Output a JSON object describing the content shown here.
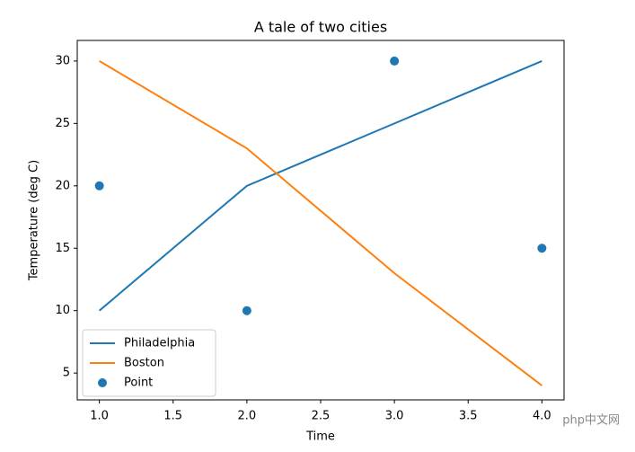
{
  "chart_data": {
    "type": "line",
    "title": "A tale of two cities",
    "x_label": "Time",
    "y_label": "Temperature (deg C)",
    "x": [
      1,
      2,
      3,
      4
    ],
    "series": [
      {
        "name": "Philadelphia",
        "kind": "line",
        "color": "#1f77b4",
        "values": [
          10,
          20,
          25,
          30
        ]
      },
      {
        "name": "Boston",
        "kind": "line",
        "color": "#ff7f0e",
        "values": [
          30,
          23,
          13,
          4
        ]
      },
      {
        "name": "Point",
        "kind": "scatter",
        "color": "#1f77b4",
        "values": [
          20,
          10,
          30,
          15
        ]
      }
    ],
    "xlim": [
      0.85,
      4.15
    ],
    "xticks": [
      {
        "value": 1,
        "label": "1.0"
      },
      {
        "value": 1.5,
        "label": "1.5"
      },
      {
        "value": 2,
        "label": "2.0"
      },
      {
        "value": 2.5,
        "label": "2.5"
      },
      {
        "value": 3,
        "label": "3.0"
      },
      {
        "value": 3.5,
        "label": "3.5"
      },
      {
        "value": 4,
        "label": "4.0"
      }
    ],
    "ylim": [
      2.85,
      31.65
    ],
    "yticks": [
      5,
      10,
      15,
      20,
      25,
      30
    ],
    "legend": "lower left",
    "watermark": "php中文网"
  }
}
